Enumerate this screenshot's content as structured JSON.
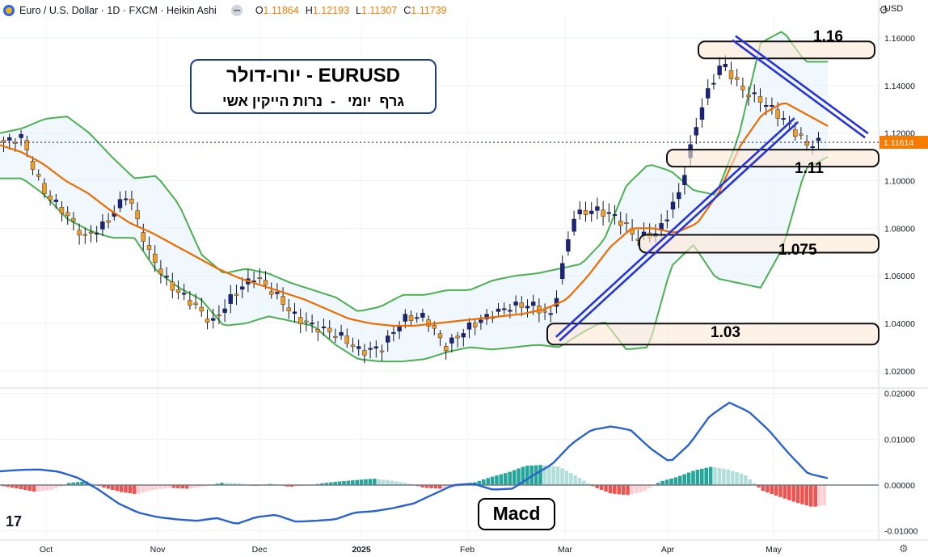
{
  "header": {
    "symbol": "Euro / U.S. Dollar · 1D · FXCM · Heikin Ashi",
    "open_label": "O",
    "open": "1.11864",
    "high_label": "H",
    "high": "1.12193",
    "low_label": "L",
    "low": "1.11307",
    "close_label": "C",
    "close": "1.11739",
    "currency": "USD"
  },
  "title": {
    "line1": "EURUSD - יורו-דולר",
    "line2": "גרף  יומי   -  נרות הייקין אשי"
  },
  "macd_label": "Macd",
  "tv_logo": "17",
  "levels": [
    {
      "label": "1.16",
      "value": 1.155
    },
    {
      "label": "1.11",
      "value": 1.1095
    },
    {
      "label": "1.075",
      "value": 1.0735
    },
    {
      "label": "1.03",
      "value": 1.0355
    }
  ],
  "chart_data": [
    {
      "type": "candlestick",
      "price_axis_ticks": [
        "1.16000",
        "1.14000",
        "1.12000",
        "1.10000",
        "1.08000",
        "1.06000",
        "1.04000",
        "1.02000"
      ],
      "ylim": [
        1.0135,
        1.1685
      ],
      "last_price_label": "1.11614",
      "last_price": 1.11614,
      "x_ticks": [
        "Oct",
        "Nov",
        "Dec",
        "2025",
        "Feb",
        "Mar",
        "Apr",
        "May"
      ],
      "anchors": [
        [
          1.114,
          1.1155
        ],
        [
          1.117,
          1.1185
        ],
        [
          1.109,
          1.096
        ],
        [
          1.097,
          1.087
        ],
        [
          1.081,
          1.076
        ],
        [
          1.078,
          1.082
        ],
        [
          1.087,
          1.095
        ],
        [
          1.09,
          1.07
        ],
        [
          1.06,
          1.056
        ],
        [
          1.054,
          1.049
        ],
        [
          1.046,
          1.04
        ],
        [
          1.047,
          1.052
        ],
        [
          1.056,
          1.06
        ],
        [
          1.058,
          1.052
        ],
        [
          1.05,
          1.042
        ],
        [
          1.038,
          1.038
        ],
        [
          1.041,
          1.035
        ],
        [
          1.032,
          1.028
        ],
        [
          1.026,
          1.03
        ],
        [
          1.032,
          1.042
        ],
        [
          1.044,
          1.043
        ],
        [
          1.041,
          1.03
        ],
        [
          1.032,
          1.038
        ],
        [
          1.039,
          1.043
        ],
        [
          1.045,
          1.047
        ],
        [
          1.049,
          1.048
        ],
        [
          1.045,
          1.043
        ],
        [
          1.06,
          1.085
        ],
        [
          1.085,
          1.088
        ],
        [
          1.092,
          1.085
        ],
        [
          1.083,
          1.076
        ],
        [
          1.078,
          1.078
        ],
        [
          1.08,
          1.095
        ],
        [
          1.115,
          1.13
        ],
        [
          1.14,
          1.15
        ],
        [
          1.145,
          1.138
        ],
        [
          1.138,
          1.133
        ],
        [
          1.131,
          1.125
        ],
        [
          1.124,
          1.115
        ],
        [
          1.119,
          1.117
        ]
      ],
      "bb_upper": [
        1.12,
        1.122,
        1.126,
        1.127,
        1.12,
        1.11,
        1.101,
        1.102,
        1.09,
        1.069,
        1.061,
        1.063,
        1.061,
        1.057,
        1.054,
        1.051,
        1.045,
        1.047,
        1.052,
        1.052,
        1.054,
        1.054,
        1.058,
        1.06,
        1.061,
        1.063,
        1.065,
        1.075,
        1.098,
        1.107,
        1.104,
        1.096,
        1.094,
        1.118,
        1.158,
        1.163,
        1.15,
        1.15
      ],
      "bb_mid": [
        1.115,
        1.112,
        1.107,
        1.1,
        1.095,
        1.088,
        1.082,
        1.078,
        1.073,
        1.068,
        1.063,
        1.059,
        1.056,
        1.053,
        1.05,
        1.046,
        1.042,
        1.04,
        1.039,
        1.039,
        1.04,
        1.041,
        1.042,
        1.043,
        1.044,
        1.046,
        1.05,
        1.06,
        1.072,
        1.08,
        1.08,
        1.078,
        1.082,
        1.095,
        1.115,
        1.128,
        1.133,
        1.128,
        1.123
      ],
      "bb_lower": [
        1.101,
        1.101,
        1.094,
        1.084,
        1.079,
        1.076,
        1.076,
        1.062,
        1.055,
        1.05,
        1.039,
        1.04,
        1.043,
        1.041,
        1.039,
        1.031,
        1.025,
        1.024,
        1.024,
        1.025,
        1.028,
        1.03,
        1.029,
        1.03,
        1.031,
        1.03,
        1.036,
        1.041,
        1.029,
        1.03,
        1.064,
        1.073,
        1.059,
        1.057,
        1.055,
        1.072,
        1.105,
        1.11
      ],
      "trend_lines": [
        {
          "from": [
            1.0335,
            0.0
          ],
          "to": [
            1.1255,
            1.0
          ]
        },
        {
          "from": [
            1.16,
            0.0
          ],
          "to": [
            1.119,
            1.0
          ]
        }
      ]
    },
    {
      "type": "macd",
      "axis_ticks": [
        "0.02000",
        "0.01000",
        "0.00000",
        "-0.01000"
      ],
      "ylim": [
        -0.012,
        0.021
      ],
      "macd_line": [
        0.003,
        0.0033,
        0.0034,
        0.0029,
        0.0015,
        -0.001,
        -0.004,
        -0.006,
        -0.007,
        -0.0075,
        -0.0078,
        -0.0072,
        -0.0085,
        -0.007,
        -0.0065,
        -0.008,
        -0.0078,
        -0.0075,
        -0.006,
        -0.0057,
        -0.005,
        -0.004,
        -0.002,
        0.0,
        0.0003,
        -0.001,
        -0.0008,
        0.002,
        0.0045,
        0.009,
        0.012,
        0.0128,
        0.012,
        0.008,
        0.005,
        0.009,
        0.015,
        0.018,
        0.016,
        0.012,
        0.007,
        0.0025,
        0.0015
      ],
      "histogram": [
        -0.0002,
        -0.0008,
        -0.0015,
        -0.001,
        0.0005,
        0.0008,
        -0.0005,
        -0.0015,
        -0.002,
        -0.001,
        -0.0006,
        -0.0008,
        -0.0003,
        0.0005,
        0.0004,
        -0.0002,
        0.0003,
        -0.0004,
        -0.0002,
        0.0004,
        0.0008,
        0.0011,
        0.0014,
        0.001,
        0.0004,
        -0.0006,
        -0.0008,
        -0.0004,
        0.0006,
        0.0018,
        0.0028,
        0.0042,
        0.0044,
        0.004,
        0.002,
        -0.0003,
        -0.0018,
        -0.0022,
        -0.0014,
        0.0008,
        0.0018,
        0.0032,
        0.004,
        0.0034,
        0.0022,
        -0.0012,
        -0.0025,
        -0.0038,
        -0.0048,
        -0.0042
      ]
    }
  ]
}
